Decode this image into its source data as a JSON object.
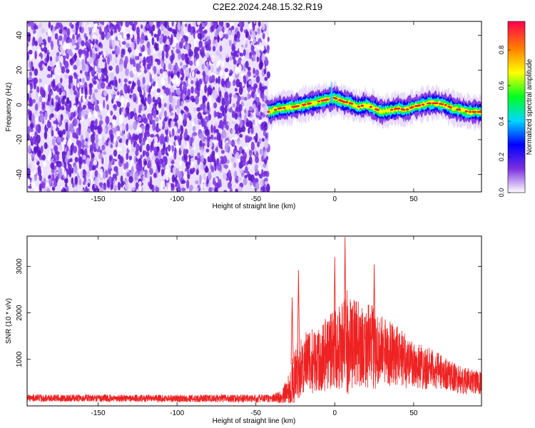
{
  "title": "C2E2.2024.248.15.32.R19",
  "chart_data": [
    {
      "type": "heatmap",
      "xlabel": "Height of straight line (km)",
      "ylabel": "Frequency (Hz)",
      "xlim": [
        -195,
        93
      ],
      "ylim": [
        -50,
        48
      ],
      "xticks": [
        "-150",
        "-100",
        "-50",
        "0",
        "50"
      ],
      "yticks": [
        "40",
        "20",
        "0",
        "-20",
        "-40"
      ],
      "colorbar": {
        "label": "Normalized spectral amplitude",
        "range": [
          0,
          0.96
        ],
        "ticks": [
          "0.0",
          "0.2",
          "0.4",
          "0.6",
          "0.8"
        ],
        "colors": [
          "#ffffff",
          "#7b2fe0",
          "#0000ff",
          "#00d8ff",
          "#00ff20",
          "#ffff00",
          "#ff8000",
          "#ff0050"
        ]
      },
      "noise_region_x": [
        -195,
        -42
      ],
      "signal_center_hz": {
        "x": [
          -42,
          -35,
          -25,
          -15,
          -5,
          0,
          5,
          10,
          15,
          20,
          25,
          30,
          35,
          40,
          45,
          50,
          55,
          60,
          65,
          70,
          75,
          80,
          85,
          93
        ],
        "y": [
          -4,
          -2,
          -1,
          1,
          3,
          4,
          2,
          1,
          -1,
          0,
          -2,
          -4,
          -3,
          -2,
          -3,
          -1,
          0,
          1,
          1,
          0,
          -2,
          -3,
          -4,
          -4
        ]
      },
      "signal_color": "#ff2020"
    },
    {
      "type": "line",
      "xlabel": "Height of straight line (km)",
      "ylabel": "SNR (10 * v/v)",
      "xlim": [
        -195,
        93
      ],
      "ylim": [
        0,
        3650
      ],
      "xticks": [
        "-150",
        "-100",
        "-50",
        "0",
        "50"
      ],
      "yticks": [
        "3000",
        "2000",
        "1000"
      ],
      "color": "#ee2222",
      "envelope": {
        "x": [
          -195,
          -100,
          -40,
          -33,
          -28,
          -22,
          -18,
          -12,
          -5,
          0,
          5,
          8,
          12,
          20,
          25,
          30,
          40,
          50,
          60,
          70,
          80,
          93
        ],
        "mean": [
          170,
          160,
          160,
          200,
          450,
          850,
          900,
          1000,
          1150,
          1250,
          1300,
          1350,
          1350,
          1300,
          1250,
          1200,
          1050,
          900,
          800,
          700,
          550,
          500
        ],
        "amp": [
          80,
          80,
          90,
          150,
          500,
          650,
          700,
          700,
          850,
          900,
          1000,
          1150,
          950,
          900,
          900,
          750,
          650,
          550,
          450,
          350,
          300,
          250
        ]
      },
      "peaks": [
        {
          "x": 6.5,
          "y": 3630
        },
        {
          "x": 0,
          "y": 3200
        },
        {
          "x": -23,
          "y": 2920
        },
        {
          "x": 25,
          "y": 3040
        },
        {
          "x": -27,
          "y": 2330
        }
      ]
    }
  ]
}
